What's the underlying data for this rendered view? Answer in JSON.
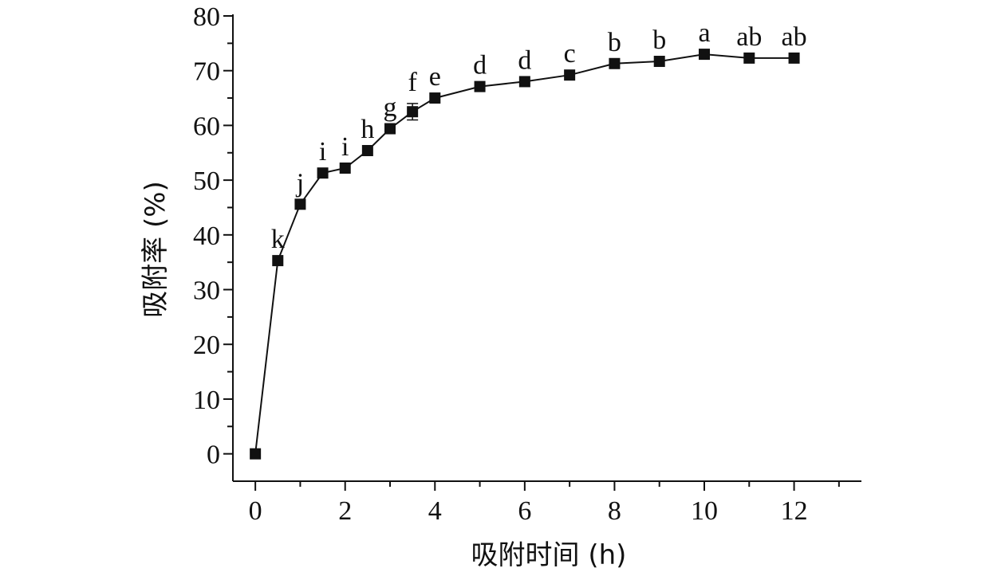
{
  "chart_data": {
    "type": "line",
    "title": "",
    "xlabel": "吸附时间 (h)",
    "ylabel": "吸附率 (%)",
    "xlim": [
      -0.5,
      13.5
    ],
    "ylim": [
      -5,
      80
    ],
    "xticks": [
      0,
      2,
      4,
      6,
      8,
      10,
      12
    ],
    "yticks": [
      0,
      10,
      20,
      30,
      40,
      50,
      60,
      70,
      80
    ],
    "grid": false,
    "legend": "none",
    "marker": "square",
    "color": "#111111",
    "series": [
      {
        "x": [
          0,
          0.5,
          1,
          1.5,
          2,
          2.5,
          3,
          3.5,
          4,
          5,
          6,
          7,
          8,
          9,
          10,
          11,
          12
        ],
        "y": [
          0,
          35.3,
          45.6,
          51.3,
          52.2,
          55.4,
          59.4,
          62.5,
          65.0,
          67.1,
          68.0,
          69.2,
          71.3,
          71.7,
          73.0,
          72.3,
          72.3
        ],
        "error": [
          0,
          0,
          0,
          0,
          0,
          0,
          0,
          1.5,
          0,
          0,
          0,
          0,
          0,
          0,
          0,
          0,
          0
        ],
        "labels": [
          "",
          "k",
          "j",
          "i",
          "i",
          "h",
          "g",
          "f",
          "e",
          "d",
          "d",
          "c",
          "b",
          "b",
          "a",
          "ab",
          "ab"
        ]
      }
    ]
  }
}
